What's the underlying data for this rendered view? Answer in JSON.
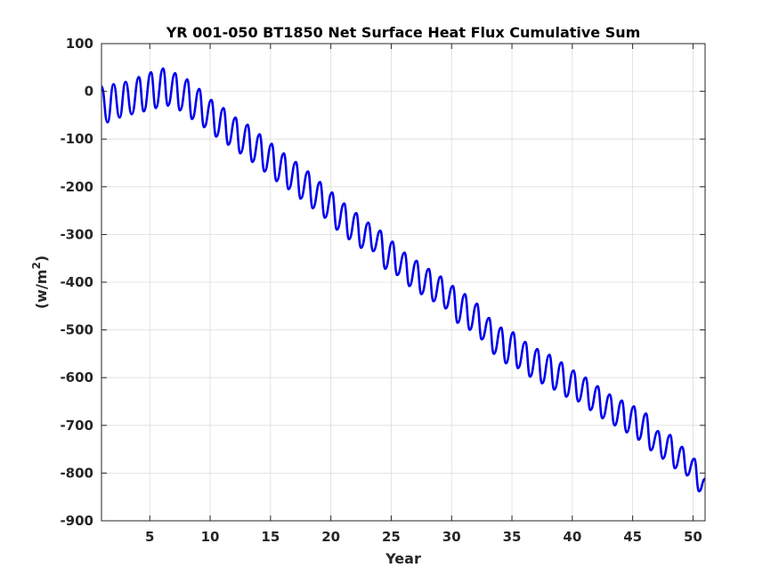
{
  "chart_data": {
    "type": "line",
    "title": "YR 001-050 BT1850 Net Surface Heat Flux  Cumulative Sum",
    "xlabel": "Year",
    "ylabel_main": "(w/m",
    "ylabel_sup": "2",
    "ylabel_close": ")",
    "xlim": [
      1,
      51
    ],
    "ylim": [
      -900,
      100
    ],
    "xticks": [
      5,
      10,
      15,
      20,
      25,
      30,
      35,
      40,
      45,
      50
    ],
    "yticks": [
      100,
      0,
      -100,
      -200,
      -300,
      -400,
      -500,
      -600,
      -700,
      -800,
      -900
    ],
    "xtick_labels": [
      "5",
      "10",
      "15",
      "20",
      "25",
      "30",
      "35",
      "40",
      "45",
      "50"
    ],
    "ytick_labels": [
      "100",
      "0",
      "-100",
      "-200",
      "-300",
      "-400",
      "-500",
      "-600",
      "-700",
      "-800",
      "-900"
    ],
    "grid": true,
    "series": [
      {
        "color": "#0000ee",
        "description": "monthly cumulative sum with annual oscillation; yearly maxima/minima values",
        "year_peaks": [
          [
            1.0,
            10
          ],
          [
            2.0,
            15
          ],
          [
            3.0,
            20
          ],
          [
            4.1,
            30
          ],
          [
            5.1,
            40
          ],
          [
            6.1,
            48
          ],
          [
            7.1,
            38
          ],
          [
            8.1,
            25
          ],
          [
            9.1,
            5
          ],
          [
            10.1,
            -18
          ],
          [
            11.1,
            -35
          ],
          [
            12.1,
            -55
          ],
          [
            13.1,
            -70
          ],
          [
            14.1,
            -90
          ],
          [
            15.1,
            -110
          ],
          [
            16.1,
            -130
          ],
          [
            17.1,
            -148
          ],
          [
            18.1,
            -168
          ],
          [
            19.1,
            -190
          ],
          [
            20.1,
            -212
          ],
          [
            21.1,
            -235
          ],
          [
            22.1,
            -255
          ],
          [
            23.1,
            -275
          ],
          [
            24.1,
            -292
          ],
          [
            25.1,
            -315
          ],
          [
            26.1,
            -338
          ],
          [
            27.1,
            -355
          ],
          [
            28.1,
            -372
          ],
          [
            29.1,
            -388
          ],
          [
            30.1,
            -408
          ],
          [
            31.1,
            -425
          ],
          [
            32.1,
            -445
          ],
          [
            33.1,
            -475
          ],
          [
            34.1,
            -495
          ],
          [
            35.1,
            -505
          ],
          [
            36.1,
            -525
          ],
          [
            37.1,
            -540
          ],
          [
            38.1,
            -552
          ],
          [
            39.1,
            -568
          ],
          [
            40.1,
            -585
          ],
          [
            41.1,
            -600
          ],
          [
            42.1,
            -618
          ],
          [
            43.1,
            -635
          ],
          [
            44.1,
            -648
          ],
          [
            45.1,
            -660
          ],
          [
            46.1,
            -675
          ],
          [
            47.1,
            -712
          ],
          [
            48.1,
            -720
          ],
          [
            49.1,
            -745
          ],
          [
            50.1,
            -770
          ],
          [
            51.0,
            -812
          ]
        ],
        "year_troughs": [
          [
            1.5,
            -65
          ],
          [
            2.5,
            -55
          ],
          [
            3.5,
            -48
          ],
          [
            4.5,
            -42
          ],
          [
            5.5,
            -35
          ],
          [
            6.5,
            -30
          ],
          [
            7.5,
            -40
          ],
          [
            8.5,
            -58
          ],
          [
            9.5,
            -75
          ],
          [
            10.5,
            -95
          ],
          [
            11.5,
            -112
          ],
          [
            12.5,
            -130
          ],
          [
            13.5,
            -148
          ],
          [
            14.5,
            -168
          ],
          [
            15.5,
            -188
          ],
          [
            16.5,
            -205
          ],
          [
            17.5,
            -225
          ],
          [
            18.5,
            -245
          ],
          [
            19.5,
            -265
          ],
          [
            20.5,
            -290
          ],
          [
            21.5,
            -310
          ],
          [
            22.5,
            -328
          ],
          [
            23.5,
            -335
          ],
          [
            24.5,
            -372
          ],
          [
            25.5,
            -385
          ],
          [
            26.5,
            -408
          ],
          [
            27.5,
            -425
          ],
          [
            28.5,
            -440
          ],
          [
            29.5,
            -455
          ],
          [
            30.5,
            -485
          ],
          [
            31.5,
            -500
          ],
          [
            32.5,
            -520
          ],
          [
            33.5,
            -550
          ],
          [
            34.5,
            -570
          ],
          [
            35.5,
            -580
          ],
          [
            36.5,
            -598
          ],
          [
            37.5,
            -612
          ],
          [
            38.5,
            -625
          ],
          [
            39.5,
            -640
          ],
          [
            40.5,
            -650
          ],
          [
            41.5,
            -668
          ],
          [
            42.5,
            -685
          ],
          [
            43.5,
            -700
          ],
          [
            44.5,
            -715
          ],
          [
            45.5,
            -730
          ],
          [
            46.5,
            -752
          ],
          [
            47.5,
            -770
          ],
          [
            48.5,
            -790
          ],
          [
            49.5,
            -805
          ],
          [
            50.5,
            -838
          ]
        ]
      }
    ]
  }
}
